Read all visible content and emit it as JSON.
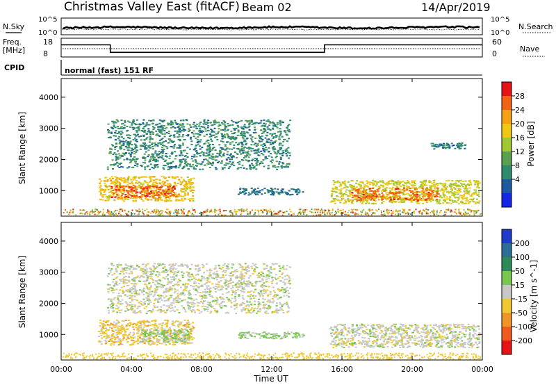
{
  "header": {
    "site": "Christmas Valley East (fitACF)",
    "beam": "Beam 02",
    "date": "14/Apr/2019"
  },
  "strips": {
    "nsky_label": "N.Sky",
    "nsearch_label": "N.Search",
    "sky_ticks": [
      "10^5",
      "10^0"
    ],
    "search_ticks": [
      "10^5",
      "10^0"
    ],
    "freq_label": "Freq.",
    "freq_unit": "[MHz]",
    "freq_ticks": [
      "18",
      "8"
    ],
    "nave_label": "Nave",
    "nave_ticks": [
      "60",
      "0"
    ],
    "cpid_label": "CPID",
    "cpid_value": "normal (fast) 151 RF"
  },
  "axes": {
    "ylabel": "Slant Range [km]",
    "xlabel": "Time UT",
    "yticks": [
      "1000",
      "2000",
      "3000",
      "4000"
    ],
    "xticks": [
      "00:00",
      "04:00",
      "08:00",
      "12:00",
      "16:00",
      "20:00",
      "00:00"
    ]
  },
  "power_scale": {
    "label": "Power [dB]",
    "ticks": [
      "4",
      "8",
      "12",
      "16",
      "20",
      "24",
      "28"
    ],
    "colors": [
      "#1428e6",
      "#1e5aa0",
      "#2e8b6e",
      "#5aa050",
      "#a0c832",
      "#f0c814",
      "#f5a014",
      "#f06414",
      "#e61414"
    ]
  },
  "velocity_scale": {
    "label": "Velocity [m s^-1]",
    "ticks": [
      "200",
      "100",
      "50",
      "15",
      "-15",
      "-50",
      "-100",
      "-200"
    ],
    "colors": [
      "#1e3cc8",
      "#2d6e96",
      "#2e8b57",
      "#78c850",
      "#c8c8c8",
      "#f0c832",
      "#f09628",
      "#f05a1e",
      "#e61414"
    ]
  },
  "chart_data": [
    {
      "type": "heatmap",
      "title": "Power",
      "xlabel": "Time UT",
      "ylabel": "Slant Range [km]",
      "xlim": [
        0,
        24
      ],
      "ylim": [
        180,
        4600
      ],
      "colorbar": {
        "label": "Power [dB]",
        "range": [
          0,
          32
        ]
      },
      "regions": [
        {
          "name": "near-range-band",
          "t": [
            2.1,
            7.5
          ],
          "r": [
            680,
            1480
          ],
          "mean": 20
        },
        {
          "name": "near-range-core",
          "t": [
            2.8,
            6.5
          ],
          "r": [
            780,
            1180
          ],
          "mean": 27
        },
        {
          "name": "far-range-arc",
          "t": [
            2.6,
            13.0
          ],
          "r": [
            1700,
            3300
          ],
          "mean": 9
        },
        {
          "name": "descending-trace",
          "t": [
            10.0,
            13.8
          ],
          "r": [
            880,
            1100
          ],
          "mean": 7
        },
        {
          "name": "late-band",
          "t": [
            15.3,
            23.8
          ],
          "r": [
            600,
            1350
          ],
          "mean": 18
        },
        {
          "name": "late-core",
          "t": [
            16.5,
            21.5
          ],
          "r": [
            700,
            1100
          ],
          "mean": 26
        },
        {
          "name": "late-far",
          "t": [
            21.0,
            23.0
          ],
          "r": [
            2350,
            2550
          ],
          "mean": 8
        }
      ]
    },
    {
      "type": "heatmap",
      "title": "Velocity",
      "xlabel": "Time UT",
      "ylabel": "Slant Range [km]",
      "xlim": [
        0,
        24
      ],
      "ylim": [
        180,
        4600
      ],
      "colorbar": {
        "label": "Velocity [m s^-1]",
        "range": [
          -200,
          200
        ]
      },
      "regions": [
        {
          "name": "near-range-band",
          "t": [
            2.1,
            7.5
          ],
          "r": [
            680,
            1480
          ],
          "mean": -40
        },
        {
          "name": "near-range-green",
          "t": [
            4.5,
            7.3
          ],
          "r": [
            750,
            1200
          ],
          "mean": 30
        },
        {
          "name": "far-range-arc",
          "t": [
            2.6,
            13.0
          ],
          "r": [
            1700,
            3300
          ],
          "mean": 0
        },
        {
          "name": "descending-trace",
          "t": [
            10.0,
            13.8
          ],
          "r": [
            880,
            1100
          ],
          "mean": 30
        },
        {
          "name": "late-band",
          "t": [
            15.3,
            23.8
          ],
          "r": [
            600,
            1350
          ],
          "mean": 0
        }
      ]
    }
  ],
  "freq_series": {
    "t": [
      0,
      2.8,
      2.8,
      15.0,
      15.0,
      24
    ],
    "mhz": [
      14.5,
      14.5,
      10.5,
      10.5,
      14.5,
      14.5
    ]
  }
}
